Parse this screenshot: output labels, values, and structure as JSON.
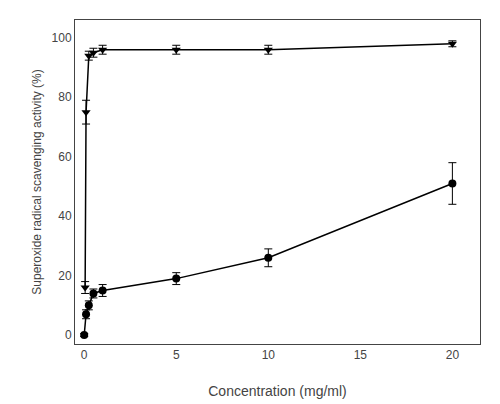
{
  "chart_data": {
    "type": "line",
    "xlabel": "Concentration (mg/ml)",
    "ylabel": "Superoxide radical scavenging activity (%)",
    "series": [
      {
        "color": "#000000",
        "marker": "circle",
        "line_style": "solid",
        "x": [
          0,
          0.1,
          0.25,
          0.5,
          1.0,
          5.0,
          10.0,
          20.0
        ],
        "values": [
          0,
          7,
          10,
          14,
          15,
          19,
          26,
          51
        ],
        "yerr": [
          0.5,
          1.5,
          1.5,
          1.5,
          2.0,
          2.0,
          3.0,
          7.0
        ]
      },
      {
        "color": "#000000",
        "marker": "triangle-down",
        "line_style": "solid",
        "x": [
          0.05,
          0.1,
          0.25,
          0.5,
          1.0,
          5.0,
          10.0,
          20.0
        ],
        "values": [
          16,
          75,
          94,
          95,
          96,
          96,
          96,
          98
        ],
        "yerr": [
          2.0,
          4.0,
          1.5,
          1.5,
          1.5,
          1.5,
          1.5,
          1.0
        ]
      }
    ],
    "xlim": [
      -0.5,
      21.5
    ],
    "ylim": [
      -3,
      106
    ],
    "xticks": [
      0,
      5,
      10,
      15,
      20
    ],
    "yticks": [
      0,
      20,
      40,
      60,
      80,
      100
    ],
    "grid": false
  }
}
